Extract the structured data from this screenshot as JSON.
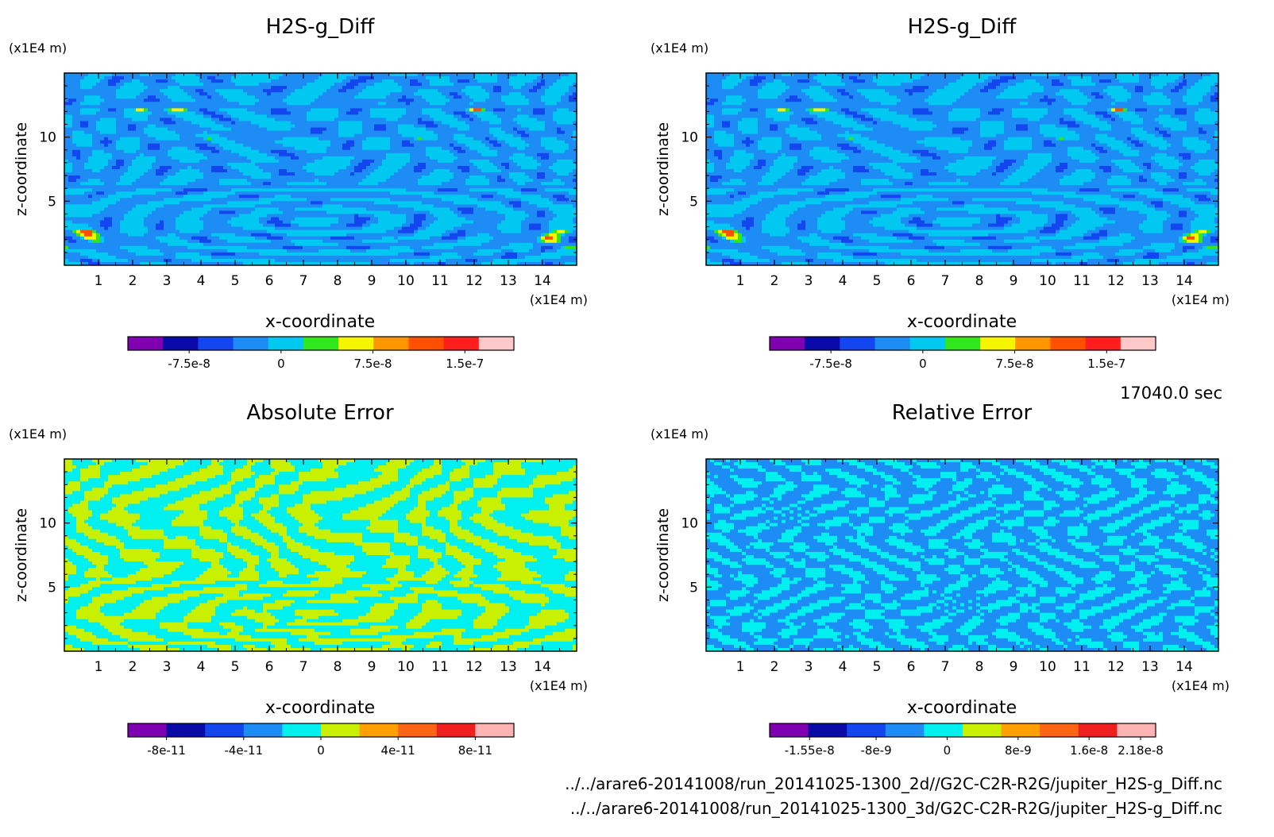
{
  "time_label": "17040.0 sec",
  "footer_lines": [
    "../../arare6-20141008/run_20141025-1300_2d//G2C-C2R-R2G/jupiter_H2S-g_Diff.nc",
    "../../arare6-20141008/run_20141025-1300_3d/G2C-C2R-R2G/jupiter_H2S-g_Diff.nc"
  ],
  "chart_data": [
    {
      "type": "heatmap",
      "title": "H2S-g_Diff",
      "xlabel": "x-coordinate",
      "ylabel": "z-coordinate",
      "x_unit": "(x1E4 m)",
      "y_unit": "(x1E4 m)",
      "xlim": [
        0,
        15
      ],
      "ylim": [
        0,
        15
      ],
      "x_ticks": [
        1,
        2,
        3,
        4,
        5,
        6,
        7,
        8,
        9,
        10,
        11,
        12,
        13,
        14
      ],
      "y_ticks": [
        5,
        10
      ],
      "pattern": "diff",
      "colorbar": {
        "colors": [
          "#7f00b0",
          "#0a0aa8",
          "#1446f0",
          "#1e8cf5",
          "#00c8f0",
          "#32e61e",
          "#f5f500",
          "#ff9600",
          "#ff5000",
          "#ff1e1e",
          "#ffc8c8"
        ],
        "ticks": [
          "-7.5e-8",
          "0",
          "7.5e-8",
          "1.5e-7"
        ],
        "tick_values": [
          -7.5e-08,
          0,
          7.5e-08,
          1.5e-07
        ],
        "range": [
          -1.25e-07,
          1.9e-07
        ]
      }
    },
    {
      "type": "heatmap",
      "title": "H2S-g_Diff",
      "xlabel": "x-coordinate",
      "ylabel": "z-coordinate",
      "x_unit": "(x1E4 m)",
      "y_unit": "(x1E4 m)",
      "xlim": [
        0,
        15
      ],
      "ylim": [
        0,
        15
      ],
      "x_ticks": [
        1,
        2,
        3,
        4,
        5,
        6,
        7,
        8,
        9,
        10,
        11,
        12,
        13,
        14
      ],
      "y_ticks": [
        5,
        10
      ],
      "pattern": "diff",
      "colorbar": {
        "colors": [
          "#7f00b0",
          "#0a0aa8",
          "#1446f0",
          "#1e8cf5",
          "#00c8f0",
          "#32e61e",
          "#f5f500",
          "#ff9600",
          "#ff5000",
          "#ff1e1e",
          "#ffc8c8"
        ],
        "ticks": [
          "-7.5e-8",
          "0",
          "7.5e-8",
          "1.5e-7"
        ],
        "tick_values": [
          -7.5e-08,
          0,
          7.5e-08,
          1.5e-07
        ],
        "range": [
          -1.25e-07,
          1.9e-07
        ]
      }
    },
    {
      "type": "heatmap",
      "title": "Absolute Error",
      "xlabel": "x-coordinate",
      "ylabel": "z-coordinate",
      "x_unit": "(x1E4 m)",
      "y_unit": "(x1E4 m)",
      "xlim": [
        0,
        15
      ],
      "ylim": [
        0,
        15
      ],
      "x_ticks": [
        1,
        2,
        3,
        4,
        5,
        6,
        7,
        8,
        9,
        10,
        11,
        12,
        13,
        14
      ],
      "y_ticks": [
        5,
        10
      ],
      "pattern": "abs",
      "colorbar": {
        "colors": [
          "#7f00b0",
          "#0a0aa8",
          "#1446f0",
          "#1e8cf5",
          "#00f0f0",
          "#c8f000",
          "#ffa000",
          "#ff6414",
          "#f01e1e",
          "#ffb4b4"
        ],
        "ticks": [
          "-8e-11",
          "-4e-11",
          "0",
          "4e-11",
          "8e-11"
        ],
        "tick_values": [
          -8e-11,
          -4e-11,
          0,
          4e-11,
          8e-11
        ],
        "range": [
          -1e-10,
          1e-10
        ]
      }
    },
    {
      "type": "heatmap",
      "title": "Relative Error",
      "xlabel": "x-coordinate",
      "ylabel": "z-coordinate",
      "x_unit": "(x1E4 m)",
      "y_unit": "(x1E4 m)",
      "xlim": [
        0,
        15
      ],
      "ylim": [
        0,
        15
      ],
      "x_ticks": [
        1,
        2,
        3,
        4,
        5,
        6,
        7,
        8,
        9,
        10,
        11,
        12,
        13,
        14
      ],
      "y_ticks": [
        5,
        10
      ],
      "pattern": "rel",
      "colorbar": {
        "colors": [
          "#7f00b0",
          "#0a0aa8",
          "#1446f0",
          "#1e8cf5",
          "#00f0f0",
          "#c8f000",
          "#ffa000",
          "#ff6414",
          "#f01e1e",
          "#ffb4b4"
        ],
        "ticks": [
          "-1.55e-8",
          "-8e-9",
          "0",
          "8e-9",
          "1.6e-8",
          "2.18e-8"
        ],
        "tick_values": [
          -1.55e-08,
          -8e-09,
          0,
          8e-09,
          1.6e-08,
          2.18e-08
        ],
        "range": [
          -2e-08,
          2.35e-08
        ]
      }
    }
  ]
}
